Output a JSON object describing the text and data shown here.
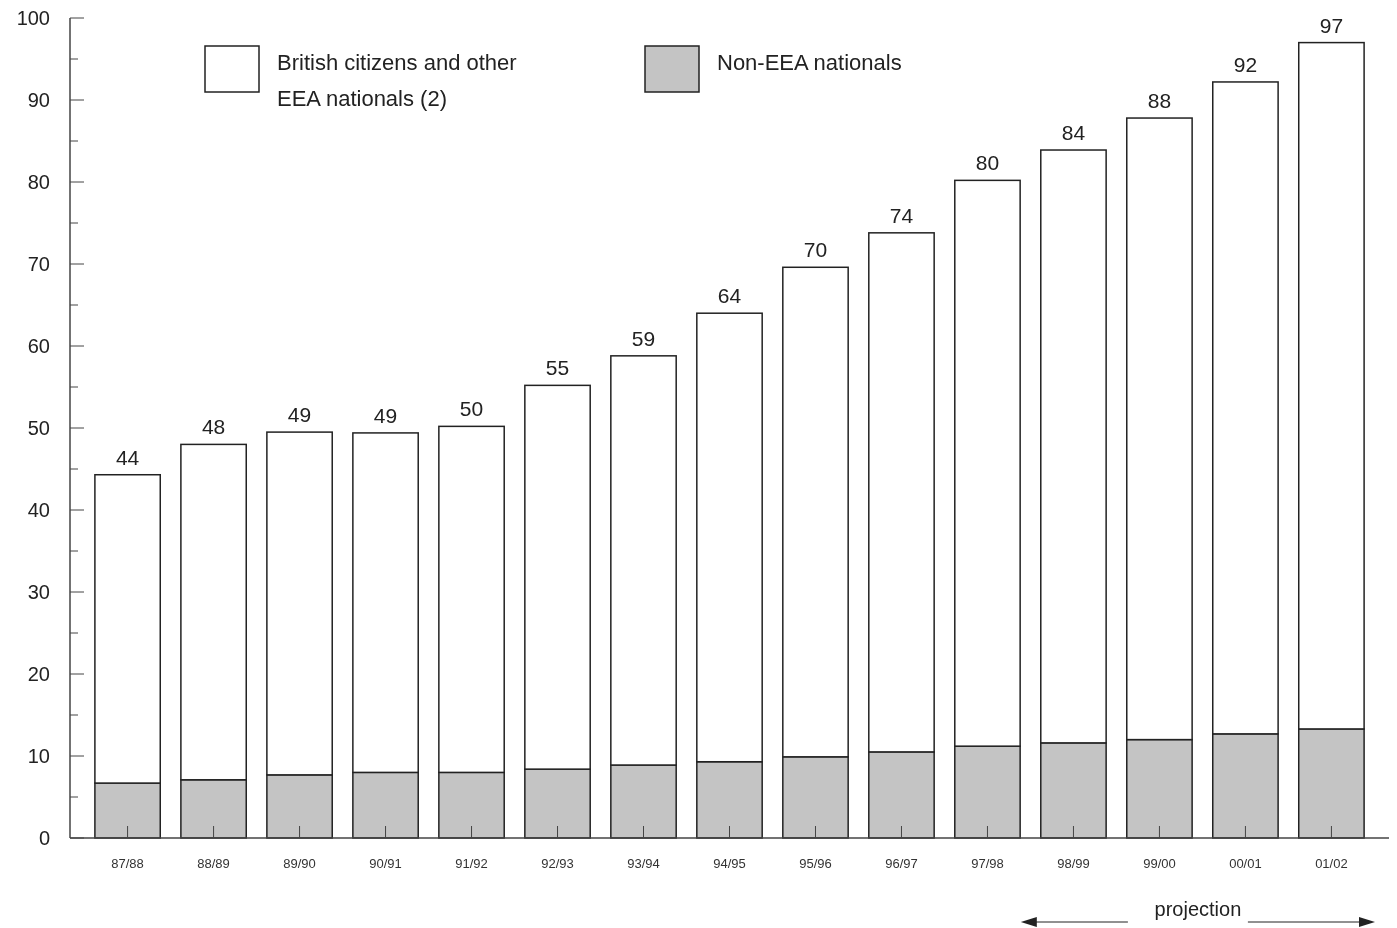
{
  "chart_data": {
    "type": "bar",
    "stacked": true,
    "categories": [
      "87/88",
      "88/89",
      "89/90",
      "90/91",
      "91/92",
      "92/93",
      "93/94",
      "94/95",
      "95/96",
      "96/97",
      "97/98",
      "98/99",
      "99/00",
      "00/01",
      "01/02"
    ],
    "series": [
      {
        "name": "Non-EEA nationals",
        "color": "#c4c4c4",
        "values": [
          6.7,
          7.1,
          7.7,
          8.0,
          8.0,
          8.4,
          8.9,
          9.3,
          9.9,
          10.5,
          11.2,
          11.6,
          12.0,
          12.7,
          13.3
        ]
      },
      {
        "name": "British citizens and other EEA nationals (2)",
        "color": "#ffffff",
        "values": [
          37.6,
          40.9,
          41.8,
          41.4,
          42.2,
          46.8,
          49.9,
          54.7,
          59.7,
          63.3,
          69.0,
          72.3,
          75.8,
          79.5,
          83.7
        ]
      }
    ],
    "totals": [
      "44",
      "48",
      "49",
      "49",
      "50",
      "55",
      "59",
      "64",
      "70",
      "74",
      "80",
      "84",
      "88",
      "92",
      "97"
    ],
    "ylim": [
      0,
      100
    ],
    "yticks": [
      0,
      {
        "value": 5,
        "label": null
      },
      10,
      {
        "value": 15,
        "label": null
      },
      20,
      {
        "value": 25,
        "label": null
      },
      30,
      {
        "value": 35,
        "label": null
      },
      40,
      {
        "value": 45,
        "label": null
      },
      50,
      {
        "value": 55,
        "label": null
      },
      60,
      {
        "value": 65,
        "label": null
      },
      70,
      {
        "value": 75,
        "label": null
      },
      80,
      {
        "value": 85,
        "label": null
      },
      90,
      {
        "value": 95,
        "label": null
      },
      100
    ],
    "legend": "top left",
    "grid": false,
    "annotations": [
      "projection"
    ]
  }
}
